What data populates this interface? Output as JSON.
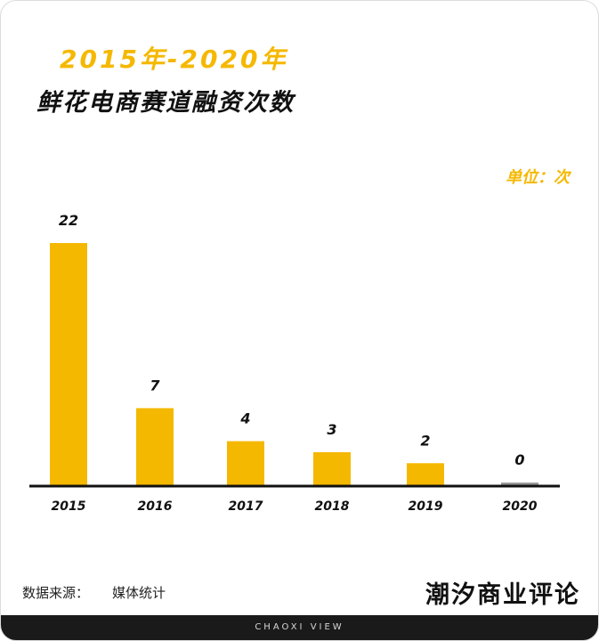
{
  "header": {
    "title_line1": "2015年-2020年",
    "title_line2": "鲜花电商赛道融资次数"
  },
  "unit_label": "单位：次",
  "source": {
    "label": "数据来源：",
    "value": "媒体统计"
  },
  "brand": "潮汐商业评论",
  "footer": "CHAOXI VIEW",
  "colors": {
    "bar": "#F5B800",
    "zero_bar": "#9A9A9A",
    "axis": "#111111",
    "text": "#111111"
  },
  "chart_data": {
    "type": "bar",
    "categories": [
      "2015",
      "2016",
      "2017",
      "2018",
      "2019",
      "2020"
    ],
    "values": [
      22,
      7,
      4,
      3,
      2,
      0
    ],
    "title": "鲜花电商赛道融资次数",
    "ylim": [
      0,
      22
    ]
  }
}
